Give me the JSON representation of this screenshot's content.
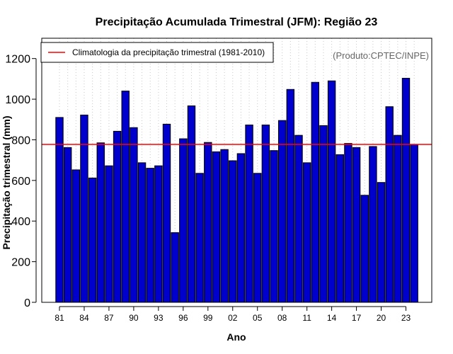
{
  "chart_data": {
    "type": "bar",
    "title": "Precipitação Acumulada Trimestral (JFM): Região 23",
    "xlabel": "Ano",
    "ylabel": "Precipitação trimestral (mm)",
    "ylim": [
      0,
      1300
    ],
    "yticks": [
      0,
      200,
      400,
      600,
      800,
      1000,
      1200
    ],
    "years": [
      1981,
      1982,
      1983,
      1984,
      1985,
      1986,
      1987,
      1988,
      1989,
      1990,
      1991,
      1992,
      1993,
      1994,
      1995,
      1996,
      1997,
      1998,
      1999,
      2000,
      2001,
      2002,
      2003,
      2004,
      2005,
      2006,
      2007,
      2008,
      2009,
      2010,
      2011,
      2012,
      2013,
      2014,
      2015,
      2016,
      2017,
      2018,
      2019,
      2020,
      2021,
      2022,
      2023,
      2024
    ],
    "values": [
      910,
      762,
      652,
      922,
      612,
      785,
      672,
      842,
      1040,
      860,
      687,
      660,
      672,
      877,
      343,
      805,
      967,
      635,
      787,
      741,
      752,
      697,
      732,
      873,
      635,
      873,
      747,
      895,
      1048,
      822,
      687,
      1083,
      870,
      1090,
      727,
      782,
      762,
      527,
      767,
      590,
      963,
      822,
      1103,
      777
    ],
    "tick_labels": [
      {
        "year": 1981,
        "label": "81"
      },
      {
        "year": 1984,
        "label": "84"
      },
      {
        "year": 1987,
        "label": "87"
      },
      {
        "year": 1990,
        "label": "90"
      },
      {
        "year": 1993,
        "label": "93"
      },
      {
        "year": 1996,
        "label": "96"
      },
      {
        "year": 1999,
        "label": "99"
      },
      {
        "year": 2002,
        "label": "02"
      },
      {
        "year": 2005,
        "label": "05"
      },
      {
        "year": 2008,
        "label": "08"
      },
      {
        "year": 2011,
        "label": "11"
      },
      {
        "year": 2014,
        "label": "14"
      },
      {
        "year": 2017,
        "label": "17"
      },
      {
        "year": 2020,
        "label": "20"
      },
      {
        "year": 2023,
        "label": "23"
      }
    ],
    "climatology": {
      "label": "Climatologia da precipitação trimestral (1981-2010)",
      "value": 777
    },
    "credit": "(Produto:CPTEC/INPE)",
    "grid": "vertical dotted",
    "legend_position": "top-left",
    "colors": {
      "bar_fill": "#0000cc",
      "bar_edge": "#000000",
      "climatology_line": "#ff0000",
      "grid": "#c8c8c8",
      "credit": "#666666"
    }
  }
}
